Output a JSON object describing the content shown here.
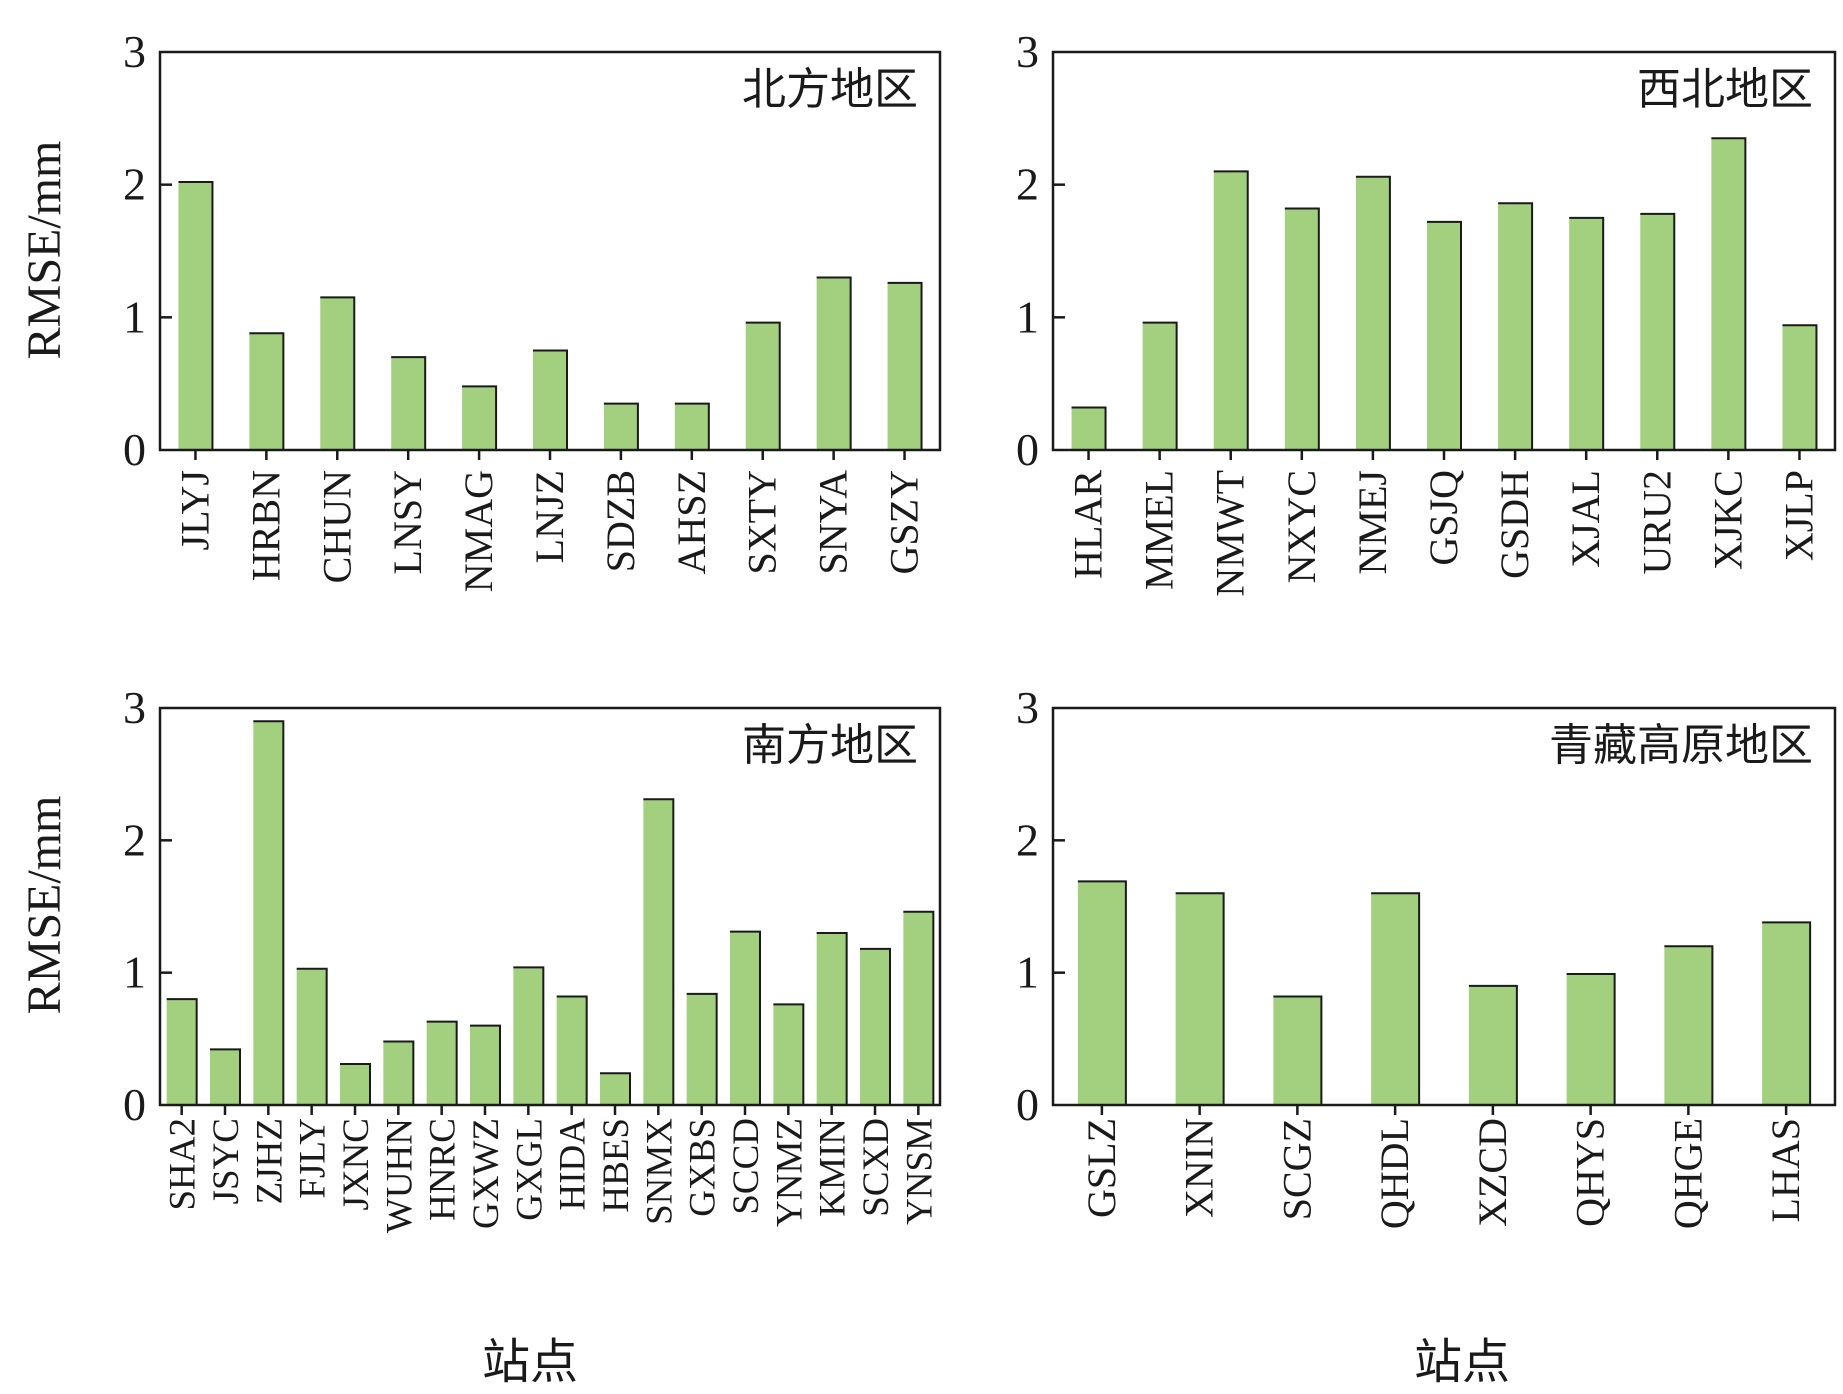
{
  "figure": {
    "bar_color": "#a3d07f",
    "edge_color": "#1a1a1a",
    "ylabel": "RMSE/mm",
    "xlabel": "站点"
  },
  "chart_data": [
    {
      "type": "bar",
      "title": "北方地区",
      "ylabel": "RMSE/mm",
      "xlabel": "",
      "ylim": [
        0,
        3
      ],
      "yticks": [
        "0",
        "1",
        "2",
        "3"
      ],
      "categories": [
        "JLYJ",
        "HRBN",
        "CHUN",
        "LNSY",
        "NMAG",
        "LNJZ",
        "SDZB",
        "AHSZ",
        "SXTY",
        "SNYA",
        "GSZY"
      ],
      "values": [
        2.02,
        0.88,
        1.15,
        0.7,
        0.48,
        0.75,
        0.35,
        0.35,
        0.96,
        1.3,
        1.26
      ]
    },
    {
      "type": "bar",
      "title": "西北地区",
      "ylabel": "",
      "xlabel": "",
      "ylim": [
        0,
        3
      ],
      "yticks": [
        "0",
        "1",
        "2",
        "3"
      ],
      "categories": [
        "HLAR",
        "MMEL",
        "NMWT",
        "NXYC",
        "NMEJ",
        "GSJQ",
        "GSDH",
        "XJAL",
        "URU2",
        "XJKC",
        "XJLP"
      ],
      "values": [
        0.32,
        0.96,
        2.1,
        1.82,
        2.06,
        1.72,
        1.86,
        1.75,
        1.78,
        2.35,
        0.94
      ]
    },
    {
      "type": "bar",
      "title": "南方地区",
      "ylabel": "RMSE/mm",
      "xlabel": "站点",
      "ylim": [
        0,
        3
      ],
      "yticks": [
        "0",
        "1",
        "2",
        "3"
      ],
      "categories": [
        "SHA2",
        "JSYC",
        "ZJHZ",
        "FJLY",
        "JXNC",
        "WUHN",
        "HNRC",
        "GXWZ",
        "GXGL",
        "HIDA",
        "HBES",
        "SNMX",
        "GXBS",
        "SCCD",
        "YNMZ",
        "KMIN",
        "SCXD",
        "YNSM"
      ],
      "values": [
        0.8,
        0.42,
        2.9,
        1.03,
        0.31,
        0.48,
        0.63,
        0.6,
        1.04,
        0.82,
        0.24,
        2.31,
        0.84,
        1.31,
        0.76,
        1.3,
        1.18,
        1.46
      ]
    },
    {
      "type": "bar",
      "title": "青藏高原地区",
      "ylabel": "",
      "xlabel": "站点",
      "ylim": [
        0,
        3
      ],
      "yticks": [
        "0",
        "1",
        "2",
        "3"
      ],
      "categories": [
        "GSLZ",
        "XNIN",
        "SCGZ",
        "QHDL",
        "XZCD",
        "QHYS",
        "QHGE",
        "LHAS"
      ],
      "values": [
        1.69,
        1.6,
        0.82,
        1.6,
        0.9,
        0.99,
        1.2,
        1.38
      ]
    }
  ]
}
